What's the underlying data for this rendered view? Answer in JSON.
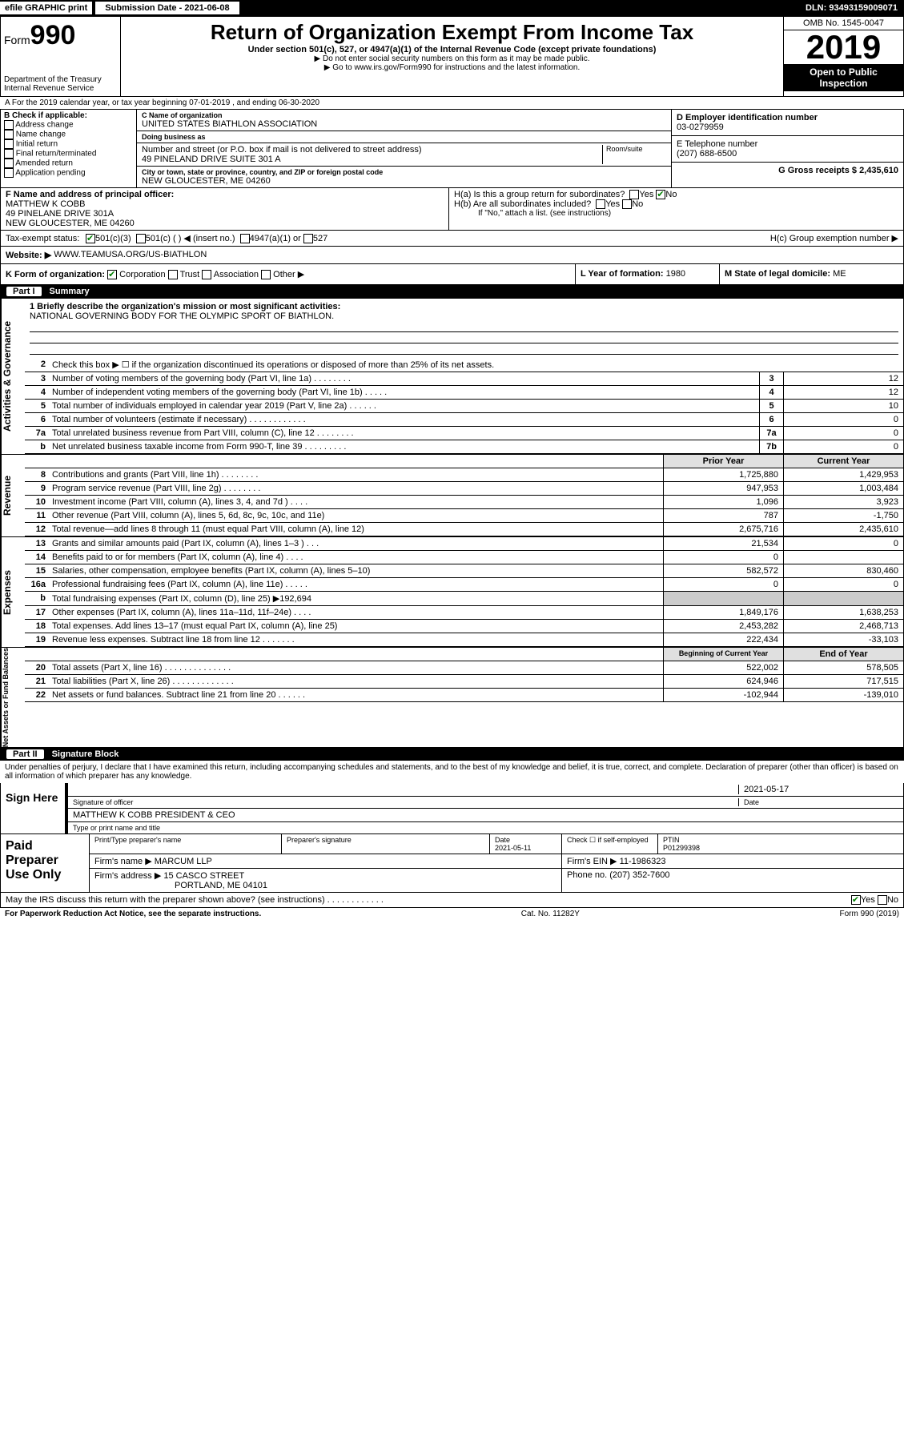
{
  "topbar": {
    "efile": "efile GRAPHIC print",
    "submission": "Submission Date - 2021-06-08",
    "dln": "DLN: 93493159009071"
  },
  "header": {
    "form_prefix": "Form",
    "form_num": "990",
    "dept": "Department of the Treasury",
    "irs": "Internal Revenue Service",
    "title": "Return of Organization Exempt From Income Tax",
    "subtitle": "Under section 501(c), 527, or 4947(a)(1) of the Internal Revenue Code (except private foundations)",
    "warn": "▶ Do not enter social security numbers on this form as it may be made public.",
    "goto": "▶ Go to www.irs.gov/Form990 for instructions and the latest information.",
    "omb": "OMB No. 1545-0047",
    "year": "2019",
    "open": "Open to Public Inspection"
  },
  "period": "A For the 2019 calendar year, or tax year beginning 07-01-2019     , and ending 06-30-2020",
  "checkB": {
    "label": "B Check if applicable:",
    "items": [
      "Address change",
      "Name change",
      "Initial return",
      "Final return/terminated",
      "Amended return",
      "Application pending"
    ]
  },
  "org": {
    "name_lbl": "C Name of organization",
    "name": "UNITED STATES BIATHLON ASSOCIATION",
    "dba_lbl": "Doing business as",
    "dba": "",
    "addr_lbl": "Number and street (or P.O. box if mail is not delivered to street address)",
    "addr": "49 PINELAND DRIVE SUITE 301 A",
    "room_lbl": "Room/suite",
    "city_lbl": "City or town, state or province, country, and ZIP or foreign postal code",
    "city": "NEW GLOUCESTER, ME  04260"
  },
  "right": {
    "ein_lbl": "D Employer identification number",
    "ein": "03-0279959",
    "tel_lbl": "E Telephone number",
    "tel": "(207) 688-6500",
    "gross_lbl": "G Gross receipts $",
    "gross": "2,435,610"
  },
  "principal": {
    "lbl": "F  Name and address of principal officer:",
    "name": "MATTHEW K COBB",
    "addr1": "49 PINELANE DRIVE 301A",
    "addr2": "NEW GLOUCESTER, ME  04260"
  },
  "h": {
    "a": "H(a)  Is this a group return for subordinates?",
    "b": "H(b)  Are all subordinates included?",
    "bnote": "If \"No,\" attach a list. (see instructions)",
    "c": "H(c)  Group exemption number ▶"
  },
  "tax": {
    "lbl": "Tax-exempt status:",
    "o1": "501(c)(3)",
    "o2": "501(c) (    ) ◀ (insert no.)",
    "o3": "4947(a)(1) or",
    "o4": "527"
  },
  "website": {
    "lbl": "Website: ▶",
    "val": "WWW.TEAMUSA.ORG/US-BIATHLON"
  },
  "k": {
    "lbl": "K Form of organization:",
    "opts": [
      "Corporation",
      "Trust",
      "Association",
      "Other ▶"
    ],
    "l_lbl": "L Year of formation:",
    "l_val": "1980",
    "m_lbl": "M State of legal domicile:",
    "m_val": "ME"
  },
  "parts": {
    "p1": "Part I",
    "p1t": "Summary",
    "p2": "Part II",
    "p2t": "Signature Block"
  },
  "briefly": {
    "lbl": "1  Briefly describe the organization's mission or most significant activities:",
    "txt": "NATIONAL GOVERNING BODY FOR THE OLYMPIC SPORT OF BIATHLON."
  },
  "lines_gov": [
    {
      "n": "2",
      "d": "Check this box ▶ ☐  if the organization discontinued its operations or disposed of more than 25% of its net assets."
    },
    {
      "n": "3",
      "d": "Number of voting members of the governing body (Part VI, line 1a)   .    .    .    .    .    .    .    .",
      "b": "3",
      "v": "12"
    },
    {
      "n": "4",
      "d": "Number of independent voting members of the governing body (Part VI, line 1b)  .    .    .    .    .",
      "b": "4",
      "v": "12"
    },
    {
      "n": "5",
      "d": "Total number of individuals employed in calendar year 2019 (Part V, line 2a)  .    .    .    .    .    .",
      "b": "5",
      "v": "10"
    },
    {
      "n": "6",
      "d": "Total number of volunteers (estimate if necessary)   .    .    .    .    .    .    .    .    .    .    .    .",
      "b": "6",
      "v": "0"
    },
    {
      "n": "7a",
      "d": "Total unrelated business revenue from Part VIII, column (C), line 12  .    .    .    .    .    .    .    .",
      "b": "7a",
      "v": "0"
    },
    {
      "n": "b",
      "d": "Net unrelated business taxable income from Form 990-T, line 39  .    .    .    .    .    .    .    .    .",
      "b": "7b",
      "v": "0"
    }
  ],
  "hdr_cols": {
    "py": "Prior Year",
    "cy": "Current Year"
  },
  "lines_rev": [
    {
      "n": "8",
      "d": "Contributions and grants (Part VIII, line 1h)   .    .    .    .    .    .    .    .",
      "py": "1,725,880",
      "cy": "1,429,953"
    },
    {
      "n": "9",
      "d": "Program service revenue (Part VIII, line 2g)   .    .    .    .    .    .    .    .",
      "py": "947,953",
      "cy": "1,003,484"
    },
    {
      "n": "10",
      "d": "Investment income (Part VIII, column (A), lines 3, 4, and 7d )  .    .    .    .",
      "py": "1,096",
      "cy": "3,923"
    },
    {
      "n": "11",
      "d": "Other revenue (Part VIII, column (A), lines 5, 6d, 8c, 9c, 10c, and 11e)",
      "py": "787",
      "cy": "-1,750"
    },
    {
      "n": "12",
      "d": "Total revenue—add lines 8 through 11 (must equal Part VIII, column (A), line 12)",
      "py": "2,675,716",
      "cy": "2,435,610"
    }
  ],
  "lines_exp": [
    {
      "n": "13",
      "d": "Grants and similar amounts paid (Part IX, column (A), lines 1–3 )  .    .    .",
      "py": "21,534",
      "cy": "0"
    },
    {
      "n": "14",
      "d": "Benefits paid to or for members (Part IX, column (A), line 4)  .    .    .    .",
      "py": "0",
      "cy": ""
    },
    {
      "n": "15",
      "d": "Salaries, other compensation, employee benefits (Part IX, column (A), lines 5–10)",
      "py": "582,572",
      "cy": "830,460"
    },
    {
      "n": "16a",
      "d": "Professional fundraising fees (Part IX, column (A), line 11e)  .    .    .    .    .",
      "py": "0",
      "cy": "0"
    },
    {
      "n": "b",
      "d": "Total fundraising expenses (Part IX, column (D), line 25) ▶192,694",
      "py": "",
      "cy": "",
      "grey": true
    },
    {
      "n": "17",
      "d": "Other expenses (Part IX, column (A), lines 11a–11d, 11f–24e)  .    .    .    .",
      "py": "1,849,176",
      "cy": "1,638,253"
    },
    {
      "n": "18",
      "d": "Total expenses. Add lines 13–17 (must equal Part IX, column (A), line 25)",
      "py": "2,453,282",
      "cy": "2,468,713"
    },
    {
      "n": "19",
      "d": "Revenue less expenses. Subtract line 18 from line 12  .    .    .    .    .    .    .",
      "py": "222,434",
      "cy": "-33,103"
    }
  ],
  "hdr_cols2": {
    "py": "Beginning of Current Year",
    "cy": "End of Year"
  },
  "lines_net": [
    {
      "n": "20",
      "d": "Total assets (Part X, line 16)  .    .    .    .    .    .    .    .    .    .    .    .    .    .",
      "py": "522,002",
      "cy": "578,505"
    },
    {
      "n": "21",
      "d": "Total liabilities (Part X, line 26)  .    .    .    .    .    .    .    .    .    .    .    .    .",
      "py": "624,946",
      "cy": "717,515"
    },
    {
      "n": "22",
      "d": "Net assets or fund balances. Subtract line 21 from line 20  .    .    .    .    .    .",
      "py": "-102,944",
      "cy": "-139,010"
    }
  ],
  "vtabs": {
    "gov": "Activities & Governance",
    "rev": "Revenue",
    "exp": "Expenses",
    "net": "Net Assets or Fund Balances"
  },
  "perjury": "Under penalties of perjury, I declare that I have examined this return, including accompanying schedules and statements, and to the best of my knowledge and belief, it is true, correct, and complete. Declaration of preparer (other than officer) is based on all information of which preparer has any knowledge.",
  "sign": {
    "lbl": "Sign Here",
    "sig_date": "2021-05-17",
    "sig_lbl": "Signature of officer",
    "date_lbl": "Date",
    "name": "MATTHEW K COBB  PRESIDENT & CEO",
    "name_lbl": "Type or print name and title"
  },
  "paid": {
    "lbl": "Paid Preparer Use Only",
    "h1": "Print/Type preparer's name",
    "h2": "Preparer's signature",
    "h3": "Date",
    "h4": "Check ☐ if self-employed",
    "h5": "PTIN",
    "date": "2021-05-11",
    "ptin": "P01299398",
    "firm_lbl": "Firm's name      ▶",
    "firm": "MARCUM LLP",
    "ein_lbl": "Firm's EIN ▶",
    "ein": "11-1986323",
    "addr_lbl": "Firm's address ▶",
    "addr1": "15 CASCO STREET",
    "addr2": "PORTLAND, ME  04101",
    "phone_lbl": "Phone no.",
    "phone": "(207) 352-7600"
  },
  "discuss": "May the IRS discuss this return with the preparer shown above? (see instructions)    .    .    .    .    .    .    .    .    .    .    .    .",
  "footer": {
    "pra": "For Paperwork Reduction Act Notice, see the separate instructions.",
    "cat": "Cat. No. 11282Y",
    "form": "Form 990 (2019)"
  },
  "yn": {
    "yes": "Yes",
    "no": "No"
  }
}
